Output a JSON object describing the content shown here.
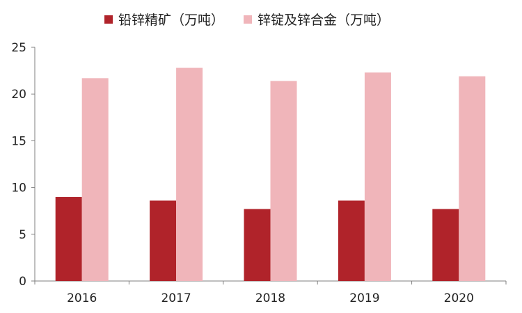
{
  "chart_data": {
    "type": "bar",
    "categories": [
      "2016",
      "2017",
      "2018",
      "2019",
      "2020"
    ],
    "series": [
      {
        "name": "铅锌精矿（万吨）",
        "color": "#b0232a",
        "values": [
          9.0,
          8.6,
          7.7,
          8.6,
          7.7
        ]
      },
      {
        "name": "锌锭及锌合金（万吨）",
        "color": "#f0b5ba",
        "values": [
          21.7,
          22.8,
          21.4,
          22.3,
          21.9
        ]
      }
    ],
    "ylim": [
      0,
      25
    ],
    "yticks": [
      0,
      5,
      10,
      15,
      20,
      25
    ],
    "grid": false,
    "legend_position": "top"
  }
}
